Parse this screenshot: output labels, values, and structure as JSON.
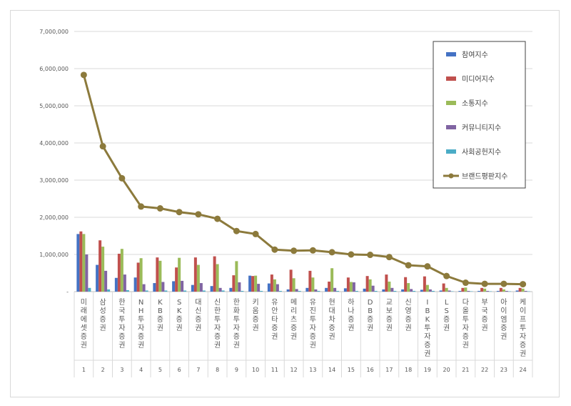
{
  "chart_data": {
    "type": "bar",
    "ylim": [
      0,
      7000000
    ],
    "y_ticks": [
      "-",
      "1,000,000",
      "2,000,000",
      "3,000,000",
      "4,000,000",
      "5,000,000",
      "6,000,000",
      "7,000,000"
    ],
    "grid": true,
    "legend_position": "top-right",
    "rank_labels": [
      "1",
      "2",
      "3",
      "4",
      "5",
      "6",
      "7",
      "8",
      "9",
      "10",
      "11",
      "12",
      "13",
      "14",
      "15",
      "16",
      "17",
      "18",
      "19",
      "20",
      "21",
      "22",
      "23",
      "24"
    ],
    "categories": [
      "미래에셋증권",
      "삼성증권",
      "한국투자증권",
      "NH투자증권",
      "KB증권",
      "SK증권",
      "대신증권",
      "신한투자증권",
      "한화투자증권",
      "키움증권",
      "유안타증권",
      "메리츠증권",
      "유진투자증권",
      "현대차증권",
      "하나증권",
      "DB증권",
      "교보증권",
      "신영증권",
      "IBK투자증권",
      "LS증권",
      "다올투자증권",
      "부국증권",
      "아이엠증권",
      "케이프투자증권"
    ],
    "series": [
      {
        "name": "참여지수",
        "color": "#4472c4",
        "values": [
          1550000,
          720000,
          370000,
          380000,
          230000,
          280000,
          180000,
          150000,
          100000,
          430000,
          220000,
          60000,
          100000,
          100000,
          90000,
          80000,
          60000,
          60000,
          50000,
          30000,
          20000,
          20000,
          20000,
          30000
        ]
      },
      {
        "name": "미디어지수",
        "color": "#c0504d",
        "values": [
          1620000,
          1380000,
          1020000,
          780000,
          920000,
          650000,
          920000,
          950000,
          440000,
          420000,
          460000,
          590000,
          560000,
          270000,
          380000,
          420000,
          460000,
          390000,
          410000,
          220000,
          100000,
          100000,
          100000,
          100000
        ]
      },
      {
        "name": "소통지수",
        "color": "#9bbb59",
        "values": [
          1550000,
          1210000,
          1150000,
          900000,
          830000,
          910000,
          720000,
          740000,
          820000,
          430000,
          330000,
          360000,
          380000,
          630000,
          260000,
          330000,
          270000,
          230000,
          180000,
          100000,
          110000,
          80000,
          60000,
          80000
        ]
      },
      {
        "name": "커뮤니티지수",
        "color": "#8064a2",
        "values": [
          1000000,
          560000,
          460000,
          200000,
          260000,
          290000,
          230000,
          100000,
          250000,
          210000,
          200000,
          70000,
          60000,
          100000,
          250000,
          160000,
          100000,
          70000,
          60000,
          30000,
          20000,
          20000,
          20000,
          20000
        ]
      },
      {
        "name": "사회공헌지수",
        "color": "#4bacc6",
        "values": [
          100000,
          60000,
          40000,
          30000,
          30000,
          30000,
          30000,
          30000,
          20000,
          20000,
          20000,
          20000,
          20000,
          20000,
          20000,
          20000,
          20000,
          20000,
          20000,
          10000,
          10000,
          10000,
          10000,
          10000
        ]
      }
    ],
    "line_series": {
      "name": "브랜드평판지수",
      "color": "#8c7a3c",
      "values": [
        5830000,
        3910000,
        3050000,
        2290000,
        2240000,
        2140000,
        2080000,
        1960000,
        1630000,
        1550000,
        1130000,
        1100000,
        1110000,
        1060000,
        1000000,
        990000,
        930000,
        710000,
        680000,
        420000,
        240000,
        210000,
        210000,
        200000
      ]
    }
  }
}
